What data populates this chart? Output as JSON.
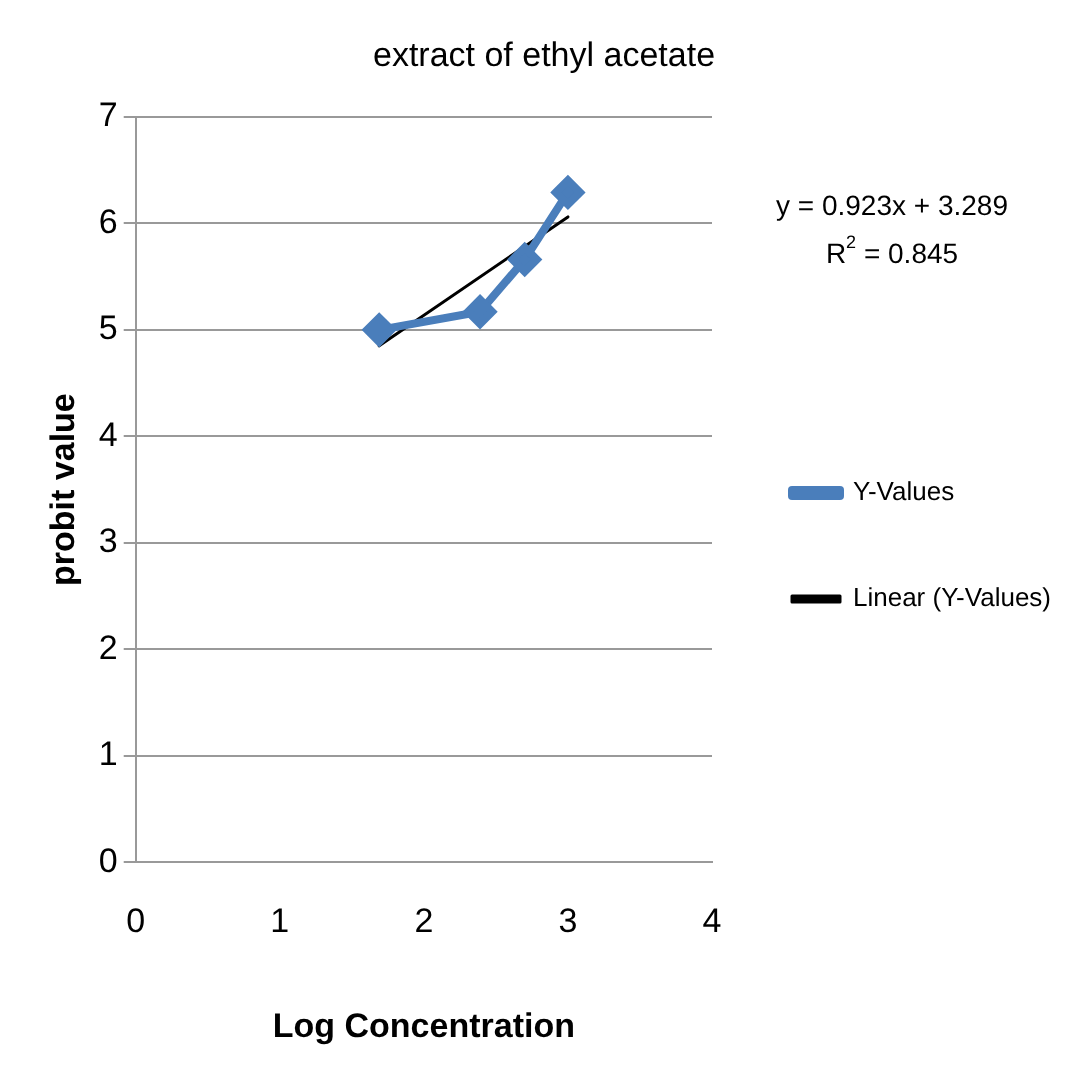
{
  "chart_data": {
    "type": "line",
    "title": "extract of ethyl acetate",
    "xlabel": "Log Concentration",
    "ylabel": "probit value",
    "xlim": [
      0,
      4
    ],
    "xticks": [
      0,
      1,
      2,
      3,
      4
    ],
    "ylim": [
      0,
      7
    ],
    "yticks": [
      0,
      1,
      2,
      3,
      4,
      5,
      6,
      7
    ],
    "grid": "y",
    "legend": "right",
    "line_style": "solid",
    "series": [
      {
        "name": "Y-Values",
        "color": "#4a7ebb",
        "marker": "diamond",
        "x": [
          1.69,
          2.39,
          2.7,
          3.0
        ],
        "values": [
          5.0,
          5.17,
          5.66,
          6.29
        ]
      },
      {
        "name": "Linear (Y-Values)",
        "color": "#000000",
        "marker": "none",
        "x": [
          1.69,
          3.0
        ],
        "values": [
          4.85,
          6.06
        ]
      }
    ],
    "annotations": [
      "y = 0.923x + 3.289",
      "R$^{2}$ = 0.845"
    ]
  }
}
